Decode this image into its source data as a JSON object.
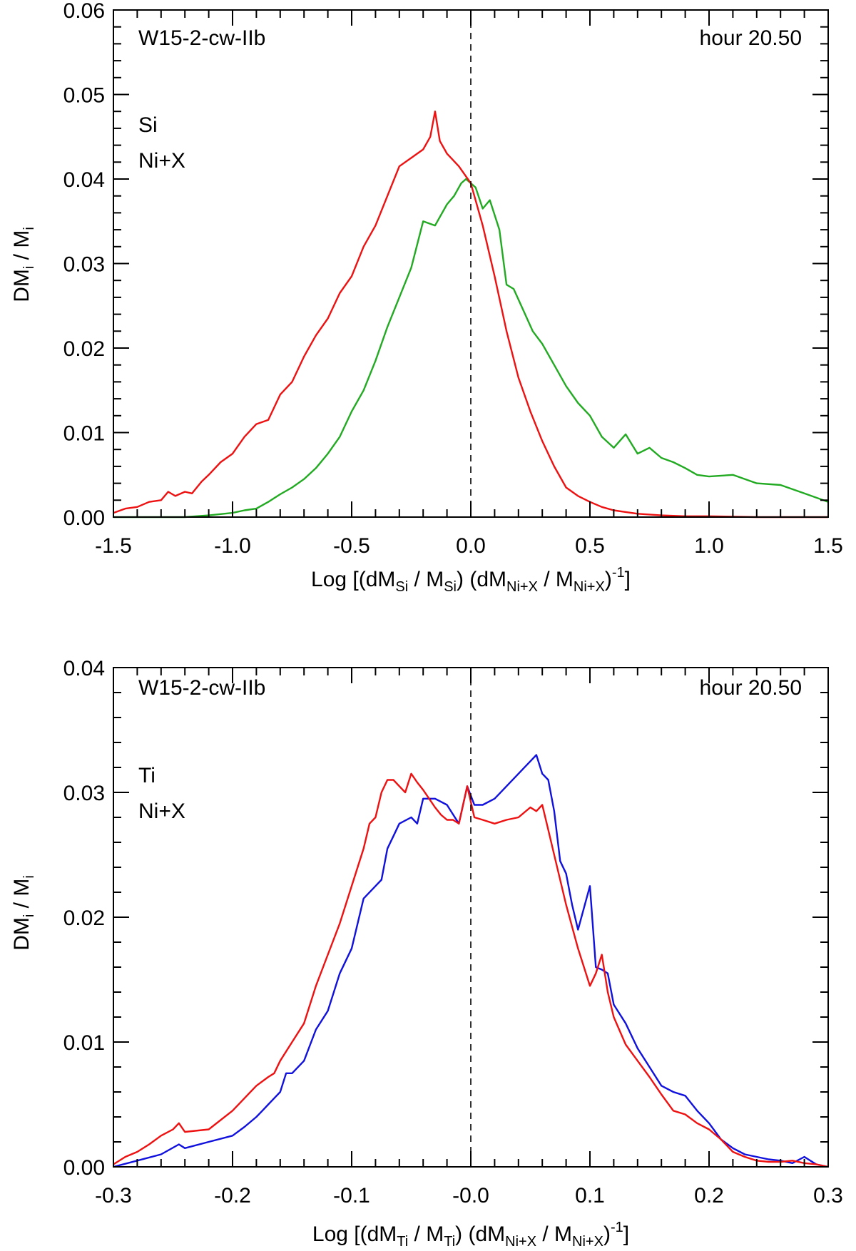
{
  "chart_data": [
    {
      "type": "line",
      "model_label": "W15-2-cw-IIb",
      "time_label": "hour 20.50",
      "xlabel": "Log [(dM_Si / M_Si) (dM_Ni+X / M_Ni+X)^-1]",
      "xlabel_parts": {
        "p1": "Log [(dM",
        "s1": "Si",
        "p2": " / M",
        "s2": "Si",
        "p3": ") (dM",
        "s3": "Ni+X",
        "p4": " / M",
        "s4": "Ni+X",
        "p5": ")",
        "sup": "-1",
        "p6": "]"
      },
      "ylabel": "DM_i / M_i",
      "ylabel_parts": {
        "p1": "DM",
        "s1": "i",
        "p2": " / M",
        "s2": "i"
      },
      "xlim": [
        -1.5,
        1.5
      ],
      "ylim": [
        0.0,
        0.06
      ],
      "xticks": [
        -1.5,
        -1.0,
        -0.5,
        0.0,
        0.5,
        1.0,
        1.5
      ],
      "xtick_labels": [
        "-1.5",
        "-1.0",
        "-0.5",
        "0.0",
        "0.5",
        "1.0",
        "1.5"
      ],
      "yticks": [
        0.0,
        0.01,
        0.02,
        0.03,
        0.04,
        0.05,
        0.06
      ],
      "ytick_labels": [
        "0.00",
        "0.01",
        "0.02",
        "0.03",
        "0.04",
        "0.05",
        "0.06"
      ],
      "vline_x": 0.0,
      "series": [
        {
          "name": "Si",
          "color": "#22aa22",
          "x": [
            -1.5,
            -1.4,
            -1.3,
            -1.2,
            -1.1,
            -1.0,
            -0.95,
            -0.9,
            -0.85,
            -0.8,
            -0.75,
            -0.7,
            -0.65,
            -0.6,
            -0.55,
            -0.5,
            -0.45,
            -0.4,
            -0.35,
            -0.3,
            -0.25,
            -0.2,
            -0.15,
            -0.1,
            -0.07,
            -0.04,
            -0.02,
            0.0,
            0.02,
            0.05,
            0.08,
            0.12,
            0.15,
            0.18,
            0.22,
            0.26,
            0.3,
            0.35,
            0.4,
            0.45,
            0.5,
            0.55,
            0.6,
            0.65,
            0.7,
            0.75,
            0.8,
            0.85,
            0.9,
            0.95,
            1.0,
            1.1,
            1.2,
            1.3,
            1.4,
            1.5
          ],
          "y": [
            0.0,
            0.0,
            0.0,
            0.0,
            0.0002,
            0.0005,
            0.0008,
            0.001,
            0.0018,
            0.0027,
            0.0035,
            0.0045,
            0.0058,
            0.0075,
            0.0095,
            0.0125,
            0.015,
            0.0185,
            0.0225,
            0.026,
            0.0295,
            0.035,
            0.0345,
            0.037,
            0.038,
            0.0395,
            0.04,
            0.0395,
            0.039,
            0.0365,
            0.0375,
            0.034,
            0.0275,
            0.027,
            0.0245,
            0.022,
            0.0205,
            0.018,
            0.0155,
            0.0135,
            0.012,
            0.0095,
            0.0082,
            0.0098,
            0.0075,
            0.0082,
            0.007,
            0.0065,
            0.0058,
            0.005,
            0.0048,
            0.005,
            0.004,
            0.0038,
            0.0028,
            0.0018
          ]
        },
        {
          "name": "Ni+X",
          "color": "#ee1111",
          "x": [
            -1.5,
            -1.45,
            -1.4,
            -1.35,
            -1.3,
            -1.27,
            -1.24,
            -1.2,
            -1.17,
            -1.13,
            -1.1,
            -1.05,
            -1.0,
            -0.95,
            -0.9,
            -0.85,
            -0.8,
            -0.75,
            -0.7,
            -0.65,
            -0.6,
            -0.55,
            -0.5,
            -0.45,
            -0.4,
            -0.35,
            -0.3,
            -0.25,
            -0.2,
            -0.17,
            -0.15,
            -0.13,
            -0.1,
            -0.05,
            0.0,
            0.05,
            0.1,
            0.15,
            0.2,
            0.25,
            0.3,
            0.35,
            0.4,
            0.45,
            0.5,
            0.55,
            0.6,
            0.65,
            0.7,
            0.75,
            0.8,
            0.9,
            1.0,
            1.2,
            1.5
          ],
          "y": [
            0.0005,
            0.001,
            0.0012,
            0.0018,
            0.002,
            0.003,
            0.0025,
            0.003,
            0.0028,
            0.0042,
            0.005,
            0.0065,
            0.0075,
            0.0095,
            0.011,
            0.0115,
            0.0145,
            0.016,
            0.019,
            0.0215,
            0.0235,
            0.0265,
            0.0285,
            0.032,
            0.0345,
            0.038,
            0.0415,
            0.0425,
            0.0435,
            0.045,
            0.048,
            0.0445,
            0.043,
            0.0415,
            0.0395,
            0.0345,
            0.0285,
            0.022,
            0.0165,
            0.0125,
            0.009,
            0.006,
            0.0035,
            0.0025,
            0.0018,
            0.0012,
            0.0008,
            0.0006,
            0.0004,
            0.0003,
            0.0002,
            0.0001,
            0.0001,
            0.0,
            0.0
          ]
        }
      ]
    },
    {
      "type": "line",
      "model_label": "W15-2-cw-IIb",
      "time_label": "hour 20.50",
      "xlabel": "Log [(dM_Ti / M_Ti) (dM_Ni+X / M_Ni+X)^-1]",
      "xlabel_parts": {
        "p1": "Log [(dM",
        "s1": "Ti",
        "p2": " / M",
        "s2": "Ti",
        "p3": ") (dM",
        "s3": "Ni+X",
        "p4": " / M",
        "s4": "Ni+X",
        "p5": ")",
        "sup": "-1",
        "p6": "]"
      },
      "ylabel": "DM_i / M_i",
      "ylabel_parts": {
        "p1": "DM",
        "s1": "i",
        "p2": " / M",
        "s2": "i"
      },
      "xlim": [
        -0.3,
        0.3
      ],
      "ylim": [
        0.0,
        0.04
      ],
      "xticks": [
        -0.3,
        -0.2,
        -0.1,
        0.0,
        0.1,
        0.2,
        0.3
      ],
      "xtick_labels": [
        "-0.3",
        "-0.2",
        "-0.1",
        "-0.0",
        "0.1",
        "0.2",
        "0.3"
      ],
      "yticks": [
        0.0,
        0.01,
        0.02,
        0.03,
        0.04
      ],
      "ytick_labels": [
        "0.00",
        "0.01",
        "0.02",
        "0.03",
        "0.04"
      ],
      "vline_x": 0.0,
      "series": [
        {
          "name": "Ti",
          "color": "#1111dd",
          "x": [
            -0.3,
            -0.28,
            -0.26,
            -0.245,
            -0.24,
            -0.22,
            -0.2,
            -0.19,
            -0.18,
            -0.175,
            -0.17,
            -0.165,
            -0.16,
            -0.155,
            -0.15,
            -0.14,
            -0.13,
            -0.12,
            -0.11,
            -0.1,
            -0.09,
            -0.08,
            -0.075,
            -0.07,
            -0.065,
            -0.06,
            -0.05,
            -0.045,
            -0.04,
            -0.03,
            -0.02,
            -0.01,
            -0.003,
            0.003,
            0.01,
            0.02,
            0.03,
            0.04,
            0.05,
            0.055,
            0.06,
            0.065,
            0.07,
            0.075,
            0.08,
            0.085,
            0.09,
            0.1,
            0.105,
            0.11,
            0.115,
            0.12,
            0.13,
            0.14,
            0.15,
            0.16,
            0.17,
            0.18,
            0.19,
            0.2,
            0.21,
            0.22,
            0.23,
            0.24,
            0.25,
            0.26,
            0.27,
            0.28,
            0.285,
            0.29,
            0.3
          ],
          "y": [
            0.0,
            0.0005,
            0.001,
            0.0018,
            0.0015,
            0.002,
            0.0025,
            0.0032,
            0.004,
            0.0045,
            0.005,
            0.0055,
            0.006,
            0.0075,
            0.0075,
            0.0085,
            0.011,
            0.0125,
            0.0155,
            0.0175,
            0.0215,
            0.0225,
            0.023,
            0.0255,
            0.0265,
            0.0275,
            0.028,
            0.0275,
            0.0295,
            0.0295,
            0.029,
            0.0275,
            0.0305,
            0.029,
            0.029,
            0.0295,
            0.0305,
            0.0315,
            0.0325,
            0.033,
            0.0315,
            0.031,
            0.0285,
            0.0245,
            0.0235,
            0.021,
            0.019,
            0.0225,
            0.016,
            0.0158,
            0.0155,
            0.013,
            0.0115,
            0.0095,
            0.008,
            0.0065,
            0.006,
            0.0057,
            0.0045,
            0.0035,
            0.0022,
            0.0015,
            0.001,
            0.0008,
            0.0006,
            0.0005,
            0.0003,
            0.0008,
            0.0005,
            0.0002,
            0.0
          ]
        },
        {
          "name": "Ni+X",
          "color": "#ee1111",
          "x": [
            -0.3,
            -0.29,
            -0.28,
            -0.27,
            -0.26,
            -0.25,
            -0.245,
            -0.24,
            -0.22,
            -0.2,
            -0.19,
            -0.18,
            -0.17,
            -0.165,
            -0.16,
            -0.15,
            -0.14,
            -0.13,
            -0.12,
            -0.11,
            -0.1,
            -0.09,
            -0.085,
            -0.08,
            -0.075,
            -0.07,
            -0.065,
            -0.06,
            -0.055,
            -0.05,
            -0.045,
            -0.04,
            -0.035,
            -0.03,
            -0.025,
            -0.02,
            -0.015,
            -0.01,
            -0.003,
            0.003,
            0.01,
            0.02,
            0.03,
            0.04,
            0.05,
            0.055,
            0.06,
            0.065,
            0.07,
            0.08,
            0.09,
            0.1,
            0.105,
            0.11,
            0.115,
            0.12,
            0.13,
            0.14,
            0.15,
            0.16,
            0.17,
            0.18,
            0.19,
            0.2,
            0.21,
            0.22,
            0.23,
            0.24,
            0.25,
            0.26,
            0.27,
            0.28,
            0.29,
            0.3
          ],
          "y": [
            0.0002,
            0.0008,
            0.0012,
            0.0018,
            0.0025,
            0.003,
            0.0035,
            0.0028,
            0.003,
            0.0045,
            0.0055,
            0.0065,
            0.0072,
            0.0075,
            0.0085,
            0.01,
            0.0115,
            0.0145,
            0.017,
            0.0195,
            0.0225,
            0.0255,
            0.0275,
            0.028,
            0.03,
            0.031,
            0.031,
            0.0305,
            0.03,
            0.0315,
            0.0308,
            0.0302,
            0.0295,
            0.0288,
            0.0282,
            0.0278,
            0.0278,
            0.0275,
            0.0305,
            0.028,
            0.0278,
            0.0275,
            0.0278,
            0.028,
            0.0288,
            0.0285,
            0.029,
            0.027,
            0.025,
            0.021,
            0.0175,
            0.0145,
            0.0155,
            0.017,
            0.014,
            0.012,
            0.0098,
            0.0085,
            0.0072,
            0.0058,
            0.0045,
            0.0042,
            0.0035,
            0.003,
            0.0022,
            0.0012,
            0.0008,
            0.0005,
            0.0004,
            0.0004,
            0.0005,
            0.0003,
            0.0002,
            0.0
          ]
        }
      ]
    }
  ]
}
